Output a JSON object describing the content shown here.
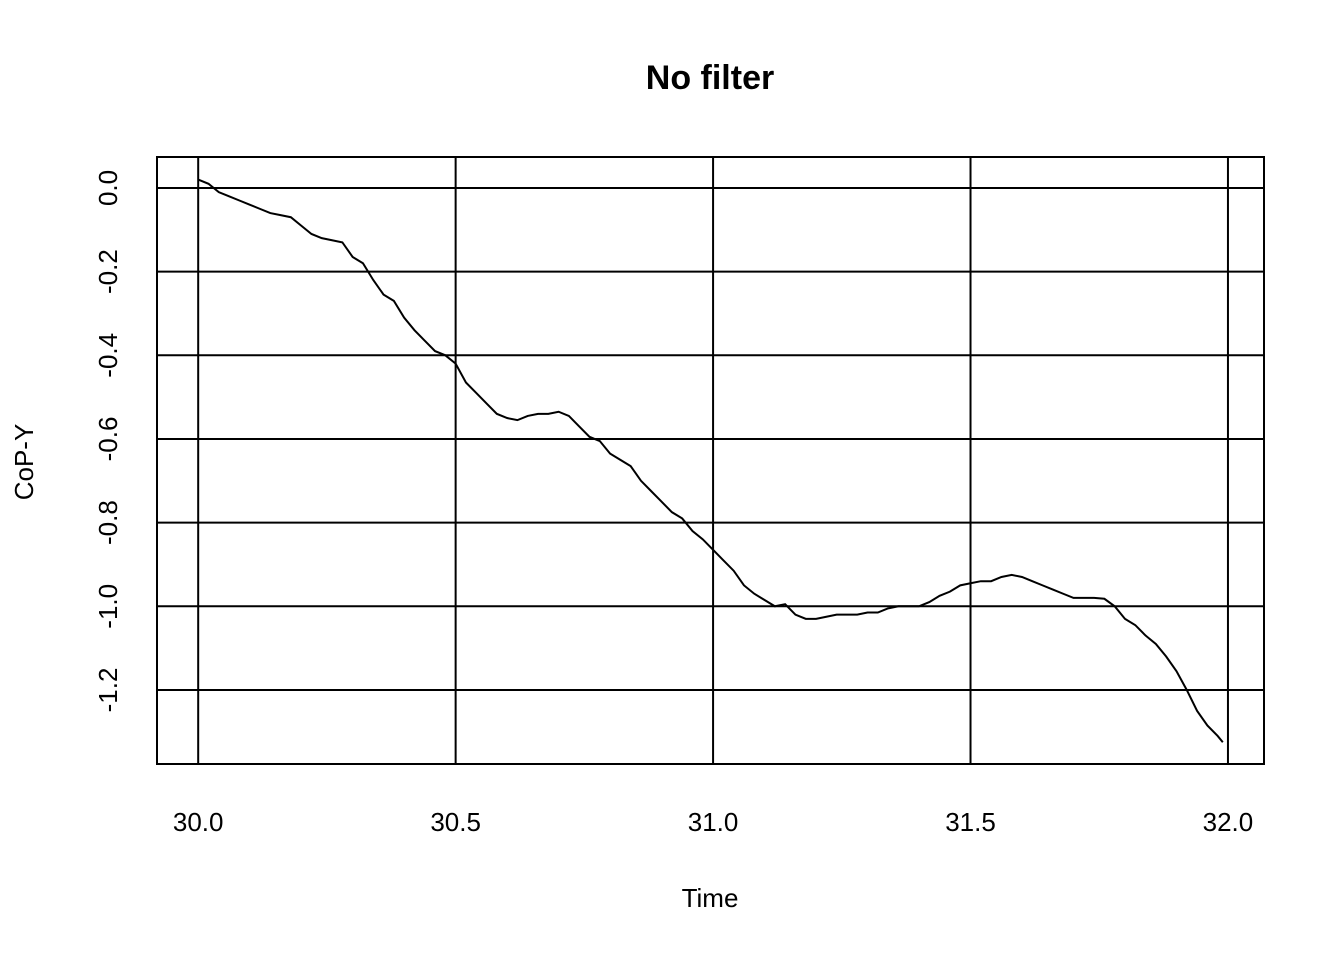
{
  "chart_data": {
    "type": "line",
    "title": "No filter",
    "xlabel": "Time",
    "ylabel": "CoP-Y",
    "x": [
      30.0,
      30.02,
      30.04,
      30.06,
      30.08,
      30.1,
      30.12,
      30.14,
      30.16,
      30.18,
      30.2,
      30.22,
      30.24,
      30.26,
      30.28,
      30.3,
      30.32,
      30.34,
      30.36,
      30.38,
      30.4,
      30.42,
      30.44,
      30.46,
      30.48,
      30.5,
      30.52,
      30.54,
      30.56,
      30.58,
      30.6,
      30.62,
      30.64,
      30.66,
      30.68,
      30.7,
      30.72,
      30.74,
      30.76,
      30.78,
      30.8,
      30.82,
      30.84,
      30.86,
      30.88,
      30.9,
      30.92,
      30.94,
      30.96,
      30.98,
      31.0,
      31.02,
      31.04,
      31.06,
      31.08,
      31.1,
      31.12,
      31.14,
      31.16,
      31.18,
      31.2,
      31.22,
      31.24,
      31.26,
      31.28,
      31.3,
      31.32,
      31.34,
      31.36,
      31.38,
      31.4,
      31.42,
      31.44,
      31.46,
      31.48,
      31.5,
      31.52,
      31.54,
      31.56,
      31.58,
      31.6,
      31.62,
      31.64,
      31.66,
      31.68,
      31.7,
      31.72,
      31.74,
      31.76,
      31.78,
      31.8,
      31.82,
      31.84,
      31.86,
      31.88,
      31.9,
      31.92,
      31.94,
      31.96,
      31.98,
      31.99
    ],
    "series": [
      {
        "color": "#000000",
        "values": [
          0.02,
          0.01,
          -0.01,
          -0.02,
          -0.03,
          -0.04,
          -0.05,
          -0.06,
          -0.065,
          -0.07,
          -0.09,
          -0.11,
          -0.12,
          -0.125,
          -0.13,
          -0.165,
          -0.18,
          -0.22,
          -0.255,
          -0.27,
          -0.31,
          -0.34,
          -0.365,
          -0.39,
          -0.4,
          -0.42,
          -0.465,
          -0.49,
          -0.515,
          -0.54,
          -0.55,
          -0.555,
          -0.545,
          -0.54,
          -0.54,
          -0.535,
          -0.545,
          -0.57,
          -0.595,
          -0.605,
          -0.635,
          -0.65,
          -0.665,
          -0.7,
          -0.725,
          -0.75,
          -0.775,
          -0.79,
          -0.82,
          -0.84,
          -0.865,
          -0.89,
          -0.915,
          -0.95,
          -0.97,
          -0.985,
          -1.0,
          -0.995,
          -1.02,
          -1.03,
          -1.03,
          -1.025,
          -1.02,
          -1.02,
          -1.02,
          -1.015,
          -1.015,
          -1.005,
          -1.0,
          -1.0,
          -1.0,
          -0.99,
          -0.975,
          -0.965,
          -0.95,
          -0.945,
          -0.94,
          -0.94,
          -0.93,
          -0.925,
          -0.93,
          -0.94,
          -0.95,
          -0.96,
          -0.97,
          -0.98,
          -0.98,
          -0.98,
          -0.982,
          -1.0,
          -1.03,
          -1.045,
          -1.07,
          -1.09,
          -1.12,
          -1.155,
          -1.2,
          -1.25,
          -1.285,
          -1.31,
          -1.325
        ]
      }
    ],
    "xlim": [
      29.92,
      32.07
    ],
    "ylim": [
      -1.377,
      0.074
    ],
    "xticks": [
      {
        "value": 30,
        "label": "30.0"
      },
      30.5,
      {
        "value": 31,
        "label": "31.0"
      },
      31.5,
      {
        "value": 32,
        "label": "32.0"
      }
    ],
    "yticks": [
      {
        "value": 0,
        "label": "0.0"
      },
      -0.2,
      -0.4,
      -0.6,
      -0.8,
      {
        "value": -1,
        "label": "-1.0"
      },
      -1.2
    ],
    "grid": true
  }
}
